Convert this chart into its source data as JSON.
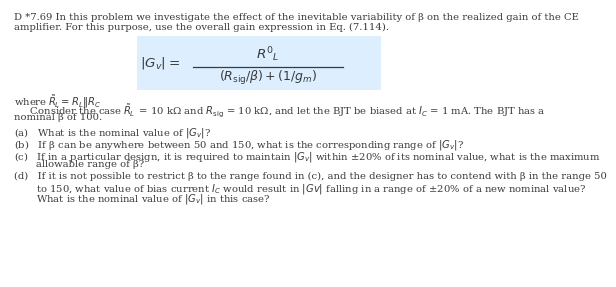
{
  "line1": "D *7.69 In this problem we investigate the effect of the inevitable variability of β on the realized gain of the CE",
  "line2": "amplifier. For this purpose, use the overall gain expression in Eq. (7.114).",
  "where_line": "where $\\tilde{R}_{\\!L} = R_L \\| R_C$",
  "consider1": "     Consider the case $\\tilde{R}_{\\!L}\\,$ = 10 kΩ and $R_{\\rm sig}$ = 10 kΩ, and let the BJT be biased at $I_C$ = 1 mA. The BJT has a",
  "consider2": "nominal β of 100.",
  "qa": "(a)   What is the nominal value of $|G_v|$?",
  "qb": "(b)   If β can be anywhere between 50 and 150, what is the corresponding range of $|G_v|$?",
  "qc1": "(c)   If in a particular design, it is required to maintain $|G_v|$ within ±20% of its nominal value, what is the maximum",
  "qc2": "       allowable range of β?",
  "qd1": "(d)   If it is not possible to restrict β to the range found in (c), and the designer has to contend with β in the range 50",
  "qd2": "       to 150, what value of bias current $I_C$ would result in $|Gv|$ falling in a range of ±20% of a new nominal value?",
  "qd3": "       What is the nominal value of $|G_v|$ in this case?",
  "bg_color": "#ffffff",
  "text_color": "#3a3a3a",
  "box_bg": "#ddeeff",
  "fs": 7.2
}
